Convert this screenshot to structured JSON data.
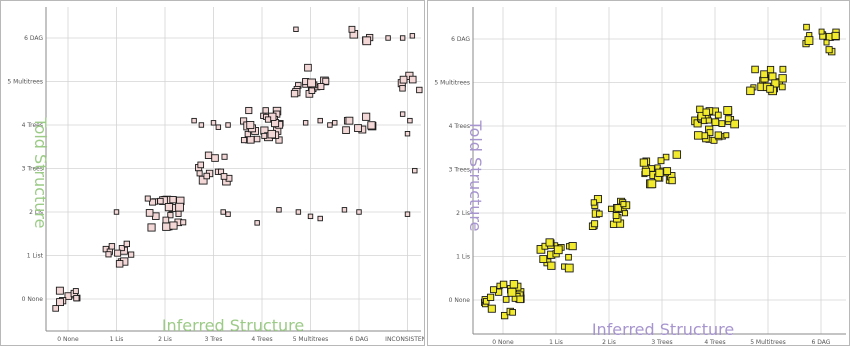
{
  "chart_data": [
    {
      "type": "scatter",
      "xlabel": "Inferred Structure",
      "ylabel": "Told Structure",
      "label_color": "#9ccb87",
      "marker_fill": "#f3d6d6",
      "marker_stroke": "#1a1a1a",
      "grid": true,
      "x_ticks": [
        "0 Nonе",
        "1 Lis",
        "2 Lis",
        "3 Tres",
        "4 Trees",
        "5 Multitrees",
        "6 DAG",
        "INCONSISTENT"
      ],
      "y_ticks": [
        "0 None",
        "1 List",
        "2 Lis",
        "3 Trees",
        "4 Trees",
        "5 Multitrees",
        "6 DAG"
      ],
      "clusters": [
        {
          "x": 0,
          "y": 0,
          "count": 10
        },
        {
          "x": 1,
          "y": 1,
          "count": 12
        },
        {
          "x": 2,
          "y": 2,
          "count": 24
        },
        {
          "x": 3,
          "y": 3,
          "count": 14
        },
        {
          "x": 4,
          "y": 4,
          "count": 30
        },
        {
          "x": 5,
          "y": 5,
          "count": 16
        },
        {
          "x": 6,
          "y": 6,
          "count": 5
        },
        {
          "x": 6,
          "y": 4,
          "count": 8
        },
        {
          "x": 7,
          "y": 5,
          "count": 6
        }
      ],
      "outliers": [
        {
          "x": 1,
          "y": 2
        },
        {
          "x": 2.6,
          "y": 4.1
        },
        {
          "x": 2.75,
          "y": 4
        },
        {
          "x": 3,
          "y": 4.05
        },
        {
          "x": 3.1,
          "y": 3.95
        },
        {
          "x": 3.3,
          "y": 4
        },
        {
          "x": 3.2,
          "y": 2
        },
        {
          "x": 3.3,
          "y": 1.95
        },
        {
          "x": 3.9,
          "y": 1.75
        },
        {
          "x": 4.35,
          "y": 2.05
        },
        {
          "x": 4.75,
          "y": 2
        },
        {
          "x": 5,
          "y": 1.9
        },
        {
          "x": 5.2,
          "y": 1.85
        },
        {
          "x": 5.7,
          "y": 2.05
        },
        {
          "x": 6,
          "y": 2
        },
        {
          "x": 4.9,
          "y": 4.05
        },
        {
          "x": 5.2,
          "y": 4.1
        },
        {
          "x": 5.4,
          "y": 4
        },
        {
          "x": 5.5,
          "y": 4.05
        },
        {
          "x": 4.7,
          "y": 6.2
        },
        {
          "x": 6.9,
          "y": 6
        },
        {
          "x": 7.1,
          "y": 6.05
        },
        {
          "x": 6.6,
          "y": 6
        },
        {
          "x": 7.05,
          "y": 4.1
        },
        {
          "x": 6.9,
          "y": 4.25
        },
        {
          "x": 7,
          "y": 3.8
        },
        {
          "x": 7.15,
          "y": 2.95
        },
        {
          "x": 7,
          "y": 1.95
        }
      ]
    },
    {
      "type": "scatter",
      "xlabel": "Inferred Structure",
      "ylabel": "Told Structure",
      "label_color": "#a795cf",
      "marker_fill": "#f2ea2c",
      "marker_stroke": "#1a1a1a",
      "grid": true,
      "x_ticks": [
        "0 None",
        "1 Lis",
        "2 Lis",
        "3 Trees",
        "4 Trees",
        "5 Multitrees",
        "6 DAG"
      ],
      "y_ticks": [
        "0 None",
        "1 Lis",
        "2 Lis",
        "3 Trees",
        "4 Trees",
        "5 Multitrees",
        "6 DAG"
      ],
      "clusters": [
        {
          "x": 0,
          "y": 0,
          "count": 24
        },
        {
          "x": 1,
          "y": 1,
          "count": 18
        },
        {
          "x": 2,
          "y": 2,
          "count": 22
        },
        {
          "x": 3,
          "y": 3,
          "count": 22
        },
        {
          "x": 4,
          "y": 4,
          "count": 32
        },
        {
          "x": 5,
          "y": 5,
          "count": 20
        },
        {
          "x": 6,
          "y": 6,
          "count": 14
        }
      ],
      "outliers": []
    }
  ]
}
